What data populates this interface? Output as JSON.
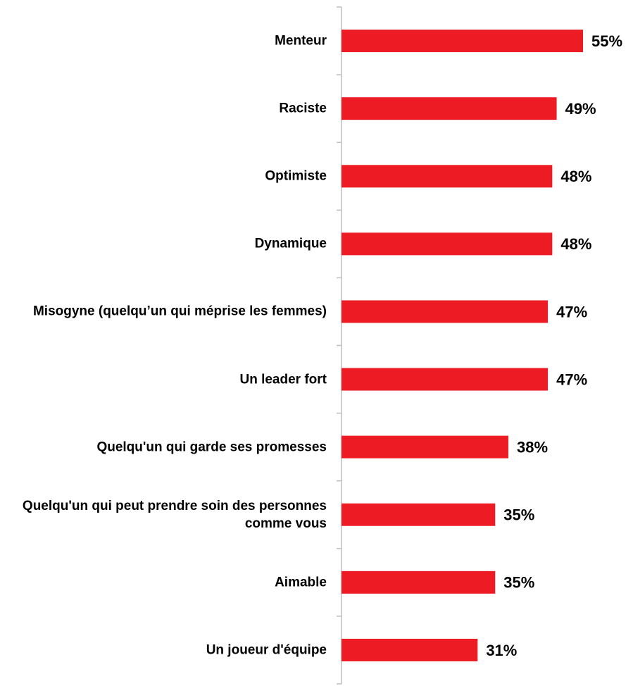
{
  "chart_data": {
    "type": "bar",
    "orientation": "horizontal",
    "categories": [
      "Menteur",
      "Raciste",
      "Optimiste",
      "Dynamique",
      "Misogyne (quelqu’un qui méprise les femmes)",
      "Un leader fort",
      "Quelqu'un qui garde ses promesses",
      "Quelqu'un qui peut prendre soin des personnes comme vous",
      "Aimable",
      "Un joueur d'équipe"
    ],
    "values": [
      55,
      49,
      48,
      48,
      47,
      47,
      38,
      35,
      35,
      31
    ],
    "value_labels": [
      "55%",
      "49%",
      "48%",
      "48%",
      "47%",
      "47%",
      "38%",
      "35%",
      "35%",
      "31%"
    ],
    "color": "#ed1c24"
  }
}
